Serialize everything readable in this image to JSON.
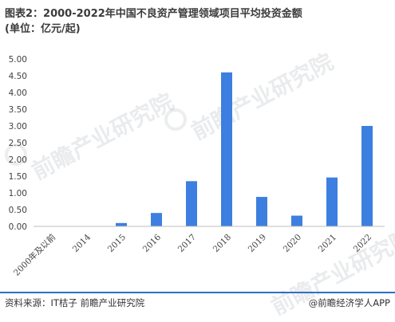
{
  "title_line1": "图表2：2000-2022年中国不良资产管理领域项目平均投资金额",
  "title_line2": "(单位：亿元/起)",
  "source": "资料来源：IT桔子 前瞻产业研究院",
  "brand": "@前瞻经济学人APP",
  "watermark": "前瞻产业研究院",
  "chart_data": {
    "type": "bar",
    "categories": [
      "2000年及以前",
      "2014",
      "2015",
      "2016",
      "2017",
      "2018",
      "2019",
      "2020",
      "2021",
      "2022"
    ],
    "values": [
      0.0,
      0.0,
      0.1,
      0.4,
      1.35,
      4.6,
      0.88,
      0.32,
      1.46,
      3.0
    ],
    "ylim": [
      0,
      5
    ],
    "yticks": [
      "0.00",
      "0.50",
      "1.00",
      "1.50",
      "2.00",
      "2.50",
      "3.00",
      "3.50",
      "4.00",
      "4.50",
      "5.00"
    ],
    "color": "#3d7fe0",
    "grid": false
  }
}
